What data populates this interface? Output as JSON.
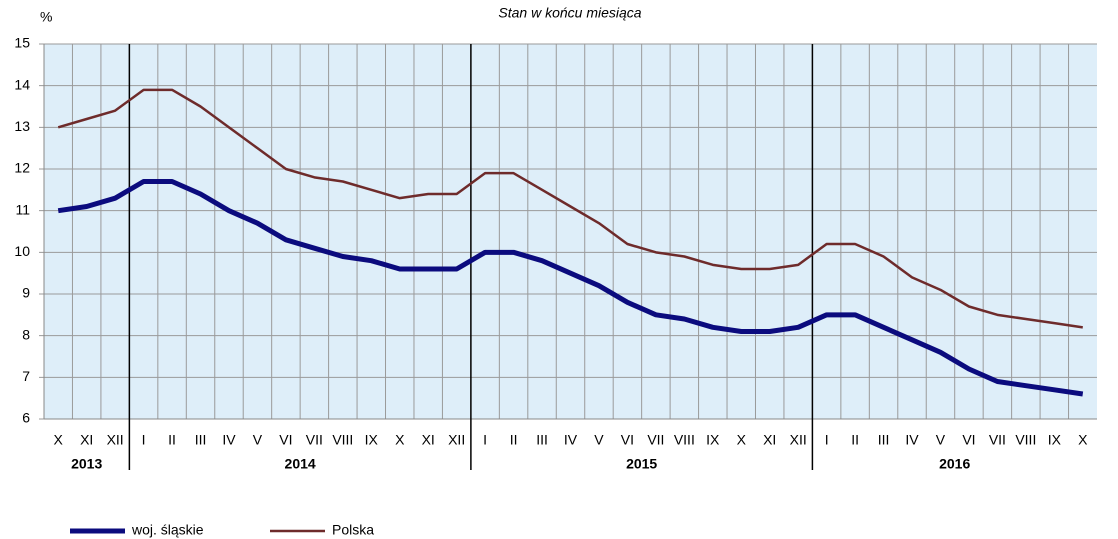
{
  "chart_data": {
    "type": "line",
    "title": "Stan w końcu miesiąca",
    "y_label": "%",
    "categories": [
      "X",
      "XI",
      "XII",
      "I",
      "II",
      "III",
      "IV",
      "V",
      "VI",
      "VII",
      "VIII",
      "IX",
      "X",
      "XI",
      "XII",
      "I",
      "II",
      "III",
      "IV",
      "V",
      "VI",
      "VII",
      "VIII",
      "IX",
      "X",
      "XI",
      "XII",
      "I",
      "II",
      "III",
      "IV",
      "V",
      "VI",
      "VII",
      "VIII",
      "IX",
      "X"
    ],
    "years": [
      "2013",
      "2014",
      "2015",
      "2016"
    ],
    "series": [
      {
        "name": "woj. śląskie",
        "color": "#0b0b7e",
        "values": [
          11.0,
          11.1,
          11.3,
          11.7,
          11.7,
          11.4,
          11.0,
          10.7,
          10.3,
          10.1,
          9.9,
          9.8,
          9.6,
          9.6,
          9.6,
          10.0,
          10.0,
          9.8,
          9.5,
          9.2,
          8.8,
          8.5,
          8.4,
          8.2,
          8.1,
          8.1,
          8.2,
          8.5,
          8.5,
          8.2,
          7.9,
          7.6,
          7.2,
          6.9,
          6.8,
          6.7,
          6.6
        ]
      },
      {
        "name": "Polska",
        "color": "#6e2b2b",
        "values": [
          13.0,
          13.2,
          13.4,
          13.9,
          13.9,
          13.5,
          13.0,
          12.5,
          12.0,
          11.8,
          11.7,
          11.5,
          11.3,
          11.4,
          11.4,
          11.9,
          11.9,
          11.5,
          11.1,
          10.7,
          10.2,
          10.0,
          9.9,
          9.7,
          9.6,
          9.6,
          9.7,
          10.2,
          10.2,
          9.9,
          9.4,
          9.1,
          8.7,
          8.5,
          8.4,
          8.3,
          8.2
        ]
      }
    ],
    "ylim": [
      6,
      15
    ],
    "yticks": [
      6,
      7,
      8,
      9,
      10,
      11,
      12,
      13,
      14,
      15
    ],
    "grid": true
  }
}
